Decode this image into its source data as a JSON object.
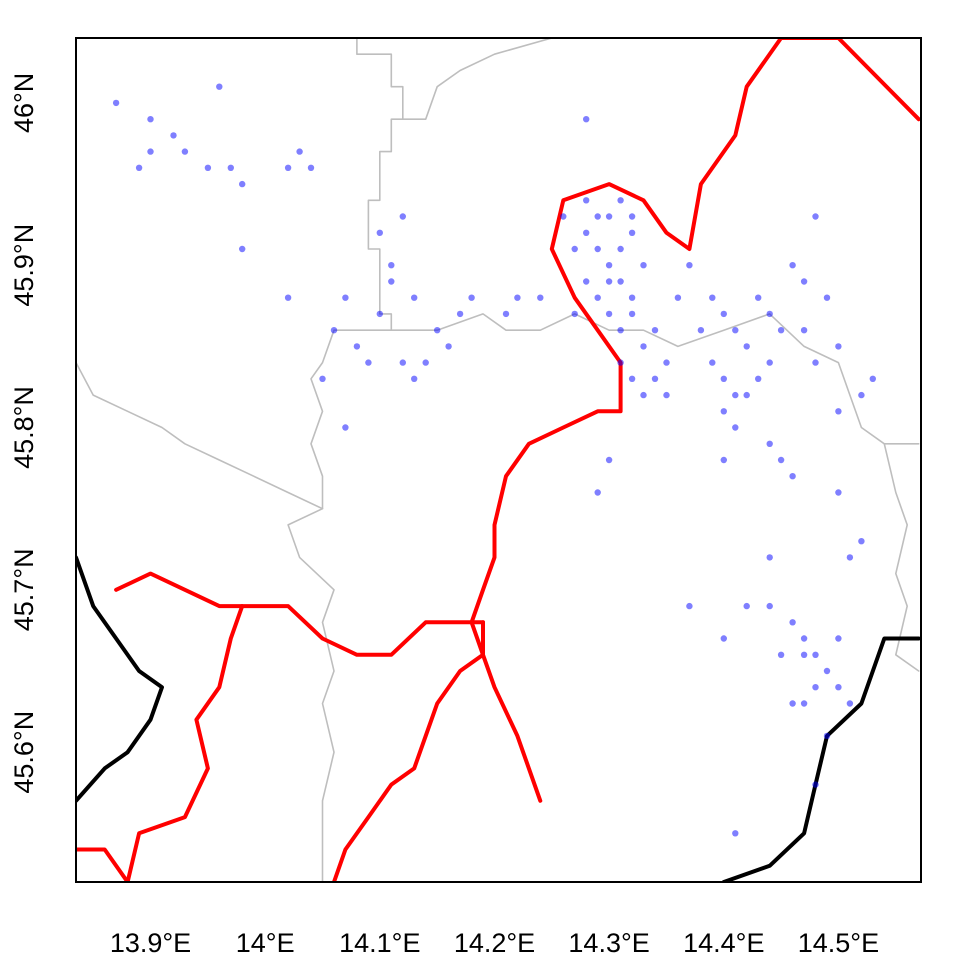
{
  "chart_data": {
    "type": "scatter",
    "title": "",
    "xlabel": "",
    "ylabel": "",
    "xlim": [
      13.835,
      14.572
    ],
    "ylim": [
      45.52,
      46.04
    ],
    "grid": false,
    "x_ticks": [
      13.9,
      14.0,
      14.1,
      14.2,
      14.3,
      14.4,
      14.5
    ],
    "x_tick_labels": [
      "13.9°E",
      "14°E",
      "14.1°E",
      "14.2°E",
      "14.3°E",
      "14.4°E",
      "14.5°E"
    ],
    "y_ticks": [
      45.6,
      45.7,
      45.8,
      45.9,
      46.0
    ],
    "y_tick_labels": [
      "45.6°N",
      "45.7°N",
      "45.8°N",
      "45.9°N",
      "46°N"
    ],
    "colors": {
      "points": "#0000ff",
      "rivers": "#ff0000",
      "border": "#000000",
      "admin_boundaries": "#bebebe",
      "frame": "#000000"
    },
    "layers": [
      {
        "name": "admin-boundaries",
        "type": "line",
        "color": "#bebebe"
      },
      {
        "name": "rivers",
        "type": "line",
        "color": "#ff0000"
      },
      {
        "name": "national-border",
        "type": "line",
        "color": "#000000"
      },
      {
        "name": "occurrence-points",
        "type": "scatter",
        "color": "#0000ff",
        "opacity": 0.5
      }
    ],
    "admin_lines": [
      [
        [
          14.08,
          46.04
        ],
        [
          14.08,
          46.03
        ],
        [
          14.11,
          46.03
        ],
        [
          14.11,
          46.01
        ],
        [
          14.12,
          46.01
        ],
        [
          14.12,
          45.99
        ],
        [
          14.11,
          45.99
        ],
        [
          14.11,
          45.97
        ],
        [
          14.1,
          45.97
        ],
        [
          14.1,
          45.94
        ],
        [
          14.09,
          45.94
        ],
        [
          14.09,
          45.91
        ],
        [
          14.1,
          45.91
        ],
        [
          14.1,
          45.87
        ],
        [
          14.11,
          45.87
        ],
        [
          14.11,
          45.86
        ],
        [
          14.06,
          45.86
        ],
        [
          14.05,
          45.84
        ],
        [
          14.04,
          45.83
        ],
        [
          14.05,
          45.81
        ],
        [
          14.04,
          45.79
        ],
        [
          14.05,
          45.77
        ],
        [
          14.05,
          45.75
        ],
        [
          14.02,
          45.74
        ],
        [
          14.03,
          45.72
        ],
        [
          14.06,
          45.7
        ],
        [
          14.05,
          45.68
        ],
        [
          14.06,
          45.65
        ],
        [
          14.05,
          45.63
        ],
        [
          14.06,
          45.6
        ],
        [
          14.05,
          45.57
        ],
        [
          14.05,
          45.52
        ]
      ],
      [
        [
          14.25,
          46.04
        ],
        [
          14.2,
          46.03
        ],
        [
          14.17,
          46.02
        ],
        [
          14.15,
          46.01
        ],
        [
          14.14,
          45.99
        ],
        [
          14.12,
          45.99
        ]
      ],
      [
        [
          13.835,
          45.84
        ],
        [
          13.85,
          45.82
        ],
        [
          13.88,
          45.81
        ],
        [
          13.91,
          45.8
        ],
        [
          13.93,
          45.79
        ],
        [
          13.96,
          45.78
        ],
        [
          13.99,
          45.77
        ],
        [
          14.02,
          45.76
        ],
        [
          14.05,
          45.75
        ]
      ],
      [
        [
          14.11,
          45.86
        ],
        [
          14.15,
          45.86
        ],
        [
          14.19,
          45.87
        ],
        [
          14.21,
          45.86
        ],
        [
          14.24,
          45.86
        ],
        [
          14.27,
          45.87
        ],
        [
          14.3,
          45.86
        ],
        [
          14.33,
          45.86
        ],
        [
          14.36,
          45.85
        ],
        [
          14.4,
          45.86
        ],
        [
          14.44,
          45.87
        ],
        [
          14.47,
          45.85
        ],
        [
          14.5,
          45.84
        ],
        [
          14.51,
          45.82
        ],
        [
          14.52,
          45.8
        ],
        [
          14.54,
          45.79
        ],
        [
          14.57,
          45.79
        ]
      ],
      [
        [
          14.54,
          45.79
        ],
        [
          14.55,
          45.76
        ],
        [
          14.56,
          45.74
        ],
        [
          14.55,
          45.71
        ],
        [
          14.56,
          45.69
        ],
        [
          14.55,
          45.66
        ],
        [
          14.57,
          45.65
        ]
      ]
    ],
    "river_lines": [
      [
        [
          14.06,
          45.52
        ],
        [
          14.07,
          45.54
        ],
        [
          14.09,
          45.56
        ],
        [
          14.11,
          45.58
        ],
        [
          14.13,
          45.59
        ],
        [
          14.14,
          45.61
        ],
        [
          14.15,
          45.63
        ],
        [
          14.17,
          45.65
        ],
        [
          14.19,
          45.66
        ],
        [
          14.18,
          45.68
        ],
        [
          14.19,
          45.7
        ],
        [
          14.2,
          45.72
        ],
        [
          14.2,
          45.74
        ],
        [
          14.21,
          45.77
        ],
        [
          14.23,
          45.79
        ],
        [
          14.26,
          45.8
        ],
        [
          14.29,
          45.81
        ],
        [
          14.31,
          45.81
        ],
        [
          14.31,
          45.84
        ],
        [
          14.29,
          45.86
        ],
        [
          14.27,
          45.88
        ],
        [
          14.25,
          45.91
        ],
        [
          14.26,
          45.94
        ],
        [
          14.3,
          45.95
        ],
        [
          14.33,
          45.94
        ],
        [
          14.35,
          45.92
        ],
        [
          14.37,
          45.91
        ],
        [
          14.38,
          45.95
        ],
        [
          14.41,
          45.98
        ],
        [
          14.42,
          46.01
        ],
        [
          14.45,
          46.04
        ],
        [
          14.5,
          46.04
        ],
        [
          14.57,
          45.99
        ]
      ],
      [
        [
          13.835,
          45.54
        ],
        [
          13.86,
          45.54
        ],
        [
          13.88,
          45.52
        ]
      ],
      [
        [
          13.87,
          45.7
        ],
        [
          13.9,
          45.71
        ],
        [
          13.93,
          45.7
        ],
        [
          13.96,
          45.69
        ],
        [
          13.99,
          45.69
        ],
        [
          14.02,
          45.69
        ],
        [
          14.05,
          45.67
        ],
        [
          14.08,
          45.66
        ],
        [
          14.11,
          45.66
        ],
        [
          14.14,
          45.68
        ],
        [
          14.17,
          45.68
        ],
        [
          14.19,
          45.68
        ]
      ],
      [
        [
          14.19,
          45.68
        ],
        [
          14.19,
          45.66
        ],
        [
          14.2,
          45.64
        ],
        [
          14.22,
          45.61
        ],
        [
          14.24,
          45.57
        ]
      ],
      [
        [
          13.88,
          45.52
        ],
        [
          13.89,
          45.55
        ],
        [
          13.93,
          45.56
        ],
        [
          13.95,
          45.59
        ],
        [
          13.94,
          45.62
        ],
        [
          13.96,
          45.64
        ],
        [
          13.97,
          45.67
        ],
        [
          13.98,
          45.69
        ]
      ]
    ],
    "border_lines": [
      [
        [
          13.835,
          45.72
        ],
        [
          13.85,
          45.69
        ],
        [
          13.87,
          45.67
        ],
        [
          13.89,
          45.65
        ],
        [
          13.91,
          45.64
        ],
        [
          13.9,
          45.62
        ],
        [
          13.88,
          45.6
        ],
        [
          13.86,
          45.59
        ],
        [
          13.835,
          45.57
        ]
      ],
      [
        [
          14.4,
          45.52
        ],
        [
          14.44,
          45.53
        ],
        [
          14.47,
          45.55
        ],
        [
          14.48,
          45.58
        ],
        [
          14.49,
          45.61
        ],
        [
          14.52,
          45.63
        ],
        [
          14.54,
          45.67
        ],
        [
          14.57,
          45.67
        ]
      ]
    ],
    "points": [
      [
        13.87,
        46.0
      ],
      [
        13.9,
        45.97
      ],
      [
        13.93,
        45.97
      ],
      [
        13.95,
        45.96
      ],
      [
        13.96,
        46.01
      ],
      [
        13.9,
        45.99
      ],
      [
        13.92,
        45.98
      ],
      [
        13.89,
        45.96
      ],
      [
        13.97,
        45.96
      ],
      [
        13.98,
        45.95
      ],
      [
        14.02,
        45.96
      ],
      [
        14.03,
        45.97
      ],
      [
        14.04,
        45.96
      ],
      [
        14.02,
        45.88
      ],
      [
        13.98,
        45.91
      ],
      [
        14.07,
        45.88
      ],
      [
        14.08,
        45.85
      ],
      [
        14.09,
        45.84
      ],
      [
        14.1,
        45.87
      ],
      [
        14.11,
        45.89
      ],
      [
        14.12,
        45.84
      ],
      [
        14.13,
        45.88
      ],
      [
        14.14,
        45.84
      ],
      [
        14.15,
        45.86
      ],
      [
        14.16,
        45.85
      ],
      [
        14.17,
        45.87
      ],
      [
        14.18,
        45.88
      ],
      [
        14.1,
        45.92
      ],
      [
        14.11,
        45.9
      ],
      [
        14.12,
        45.93
      ],
      [
        14.06,
        45.86
      ],
      [
        14.05,
        45.83
      ],
      [
        14.07,
        45.8
      ],
      [
        14.13,
        45.83
      ],
      [
        14.21,
        45.87
      ],
      [
        14.22,
        45.88
      ],
      [
        14.24,
        45.88
      ],
      [
        14.26,
        45.93
      ],
      [
        14.27,
        45.91
      ],
      [
        14.28,
        45.92
      ],
      [
        14.29,
        45.93
      ],
      [
        14.3,
        45.9
      ],
      [
        14.31,
        45.91
      ],
      [
        14.32,
        45.92
      ],
      [
        14.33,
        45.9
      ],
      [
        14.28,
        45.89
      ],
      [
        14.29,
        45.88
      ],
      [
        14.3,
        45.87
      ],
      [
        14.31,
        45.86
      ],
      [
        14.32,
        45.88
      ],
      [
        14.27,
        45.87
      ],
      [
        14.33,
        45.85
      ],
      [
        14.34,
        45.86
      ],
      [
        14.35,
        45.84
      ],
      [
        14.36,
        45.88
      ],
      [
        14.37,
        45.9
      ],
      [
        14.29,
        45.91
      ],
      [
        14.3,
        45.93
      ],
      [
        14.31,
        45.94
      ],
      [
        14.32,
        45.93
      ],
      [
        14.28,
        45.94
      ],
      [
        14.3,
        45.89
      ],
      [
        14.31,
        45.89
      ],
      [
        14.32,
        45.87
      ],
      [
        14.33,
        45.82
      ],
      [
        14.34,
        45.83
      ],
      [
        14.35,
        45.82
      ],
      [
        14.31,
        45.84
      ],
      [
        14.32,
        45.83
      ],
      [
        14.38,
        45.86
      ],
      [
        14.39,
        45.88
      ],
      [
        14.4,
        45.87
      ],
      [
        14.41,
        45.86
      ],
      [
        14.42,
        45.85
      ],
      [
        14.43,
        45.88
      ],
      [
        14.44,
        45.87
      ],
      [
        14.45,
        45.86
      ],
      [
        14.4,
        45.83
      ],
      [
        14.41,
        45.82
      ],
      [
        14.42,
        45.82
      ],
      [
        14.43,
        45.83
      ],
      [
        14.44,
        45.84
      ],
      [
        14.39,
        45.84
      ],
      [
        14.4,
        45.81
      ],
      [
        14.41,
        45.8
      ],
      [
        14.44,
        45.79
      ],
      [
        14.45,
        45.78
      ],
      [
        14.46,
        45.77
      ],
      [
        14.47,
        45.86
      ],
      [
        14.48,
        45.84
      ],
      [
        14.49,
        45.88
      ],
      [
        14.5,
        45.85
      ],
      [
        14.5,
        45.81
      ],
      [
        14.48,
        45.93
      ],
      [
        14.47,
        45.89
      ],
      [
        14.46,
        45.9
      ],
      [
        14.52,
        45.82
      ],
      [
        14.53,
        45.83
      ],
      [
        14.4,
        45.78
      ],
      [
        14.46,
        45.68
      ],
      [
        14.47,
        45.67
      ],
      [
        14.47,
        45.66
      ],
      [
        14.48,
        45.66
      ],
      [
        14.49,
        45.65
      ],
      [
        14.5,
        45.67
      ],
      [
        14.48,
        45.64
      ],
      [
        14.46,
        45.63
      ],
      [
        14.45,
        45.66
      ],
      [
        14.44,
        45.69
      ],
      [
        14.5,
        45.64
      ],
      [
        14.51,
        45.63
      ],
      [
        14.49,
        45.61
      ],
      [
        14.5,
        45.76
      ],
      [
        14.51,
        45.72
      ],
      [
        14.52,
        45.73
      ],
      [
        14.44,
        45.72
      ],
      [
        14.48,
        45.58
      ],
      [
        14.41,
        45.55
      ],
      [
        14.47,
        45.63
      ],
      [
        14.4,
        45.67
      ],
      [
        14.37,
        45.69
      ],
      [
        14.42,
        45.69
      ],
      [
        14.28,
        45.99
      ],
      [
        14.29,
        45.76
      ],
      [
        14.3,
        45.78
      ]
    ]
  }
}
